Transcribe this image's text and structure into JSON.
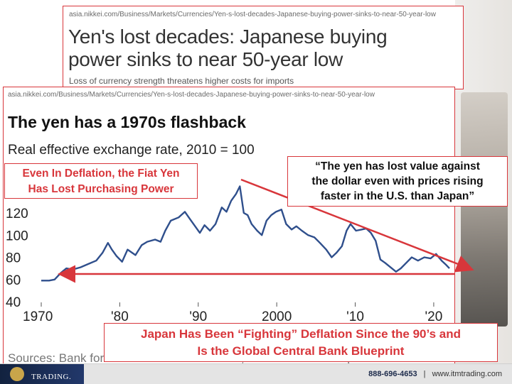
{
  "article": {
    "url": "asia.nikkei.com/Business/Markets/Currencies/Yen-s-lost-decades-Japanese-buying-power-sinks-to-near-50-year-low",
    "headline_line1": "Yen's lost decades: Japanese buying",
    "headline_line2": "power sinks to near 50-year low",
    "subheadline": "Loss of currency strength threatens higher costs for imports"
  },
  "chart_card": {
    "url": "asia.nikkei.com/Business/Markets/Currencies/Yen-s-lost-decades-Japanese-buying-power-sinks-to-near-50-year-low",
    "source": "Sources: Bank for International Settlements, Central Bank of Japan"
  },
  "callouts": {
    "left_line1": "Even In Deflation, the Fiat Yen",
    "left_line2": "Has Lost Purchasing Power",
    "quote_line1": "“The yen has lost value against",
    "quote_line2": "the dollar even with prices rising",
    "quote_line3": "faster in the U.S. than Japan”",
    "bottom_line1": "Japan Has Been “Fighting” Deflation Since the 90’s and",
    "bottom_line2": "Is the Global Central Bank Blueprint"
  },
  "footer": {
    "brand": "TRADING.",
    "phone": "888-696-4653",
    "separator": "|",
    "website": "www.itmtrading.com"
  },
  "colors": {
    "accent_red": "#d8363b",
    "line_blue": "#2f4f8c",
    "footer_navy": "#1c2a4a"
  },
  "chart_data": {
    "type": "line",
    "title": "The yen has a 1970s flashback",
    "subtitle": "Real effective exchange rate, 2010 = 100",
    "xlabel": "",
    "ylabel": "",
    "xlim": [
      1970,
      2022
    ],
    "ylim": [
      40,
      140
    ],
    "x_ticks": [
      1970,
      1980,
      1990,
      2000,
      2010,
      2020
    ],
    "x_tick_labels": [
      "1970",
      "'80",
      "'90",
      "2000",
      "'10",
      "'20"
    ],
    "y_ticks": [
      40,
      60,
      80,
      100,
      120
    ],
    "y_tick_labels": [
      "40",
      "60",
      "80",
      "100",
      "120"
    ],
    "grid": false,
    "series": [
      {
        "x": [
          1970.0,
          1971.0,
          1971.7,
          1972.5,
          1973.2,
          1974.0,
          1975.0,
          1976.0,
          1977.0,
          1977.8,
          1978.5,
          1979.0,
          1979.6,
          1980.3,
          1981.0,
          1982.0,
          1982.8,
          1983.5,
          1984.5,
          1985.2,
          1985.8,
          1986.5,
          1987.5,
          1988.3,
          1989.0,
          1989.6,
          1990.2,
          1990.8,
          1991.5,
          1992.2,
          1993.0,
          1993.6,
          1994.2,
          1994.8,
          1995.3,
          1995.8,
          1996.3,
          1996.8,
          1997.5,
          1998.1,
          1998.7,
          1999.3,
          1999.9,
          2000.6,
          2001.2,
          2001.9,
          2002.5,
          2003.2,
          2004.0,
          2004.8,
          2005.5,
          2006.3,
          2007.0,
          2007.6,
          2008.3,
          2008.9,
          2009.4,
          2010.1,
          2010.8,
          2011.4,
          2012.0,
          2012.6,
          2013.2,
          2013.8,
          2014.5,
          2015.2,
          2015.8,
          2016.5,
          2017.2,
          2018.0,
          2018.8,
          2019.6,
          2020.3,
          2021.0,
          2021.6,
          2022.0
        ],
        "y": [
          59,
          59,
          60,
          66,
          70,
          69,
          71,
          74,
          77,
          84,
          93,
          87,
          81,
          76,
          87,
          82,
          91,
          94,
          96,
          94,
          104,
          113,
          116,
          121,
          114,
          108,
          102,
          109,
          104,
          110,
          125,
          121,
          131,
          137,
          144,
          120,
          118,
          110,
          104,
          100,
          113,
          118,
          121,
          123,
          110,
          105,
          108,
          104,
          100,
          98,
          93,
          87,
          80,
          84,
          90,
          104,
          110,
          104,
          105,
          106,
          102,
          95,
          78,
          75,
          71,
          67,
          70,
          75,
          80,
          77,
          80,
          79,
          83,
          77,
          73,
          70
        ]
      }
    ],
    "annotations": [
      "trend line from the mid-1990s peak falling to the right",
      "horizontal arrow spanning from the mid-1970s level to the present"
    ]
  }
}
